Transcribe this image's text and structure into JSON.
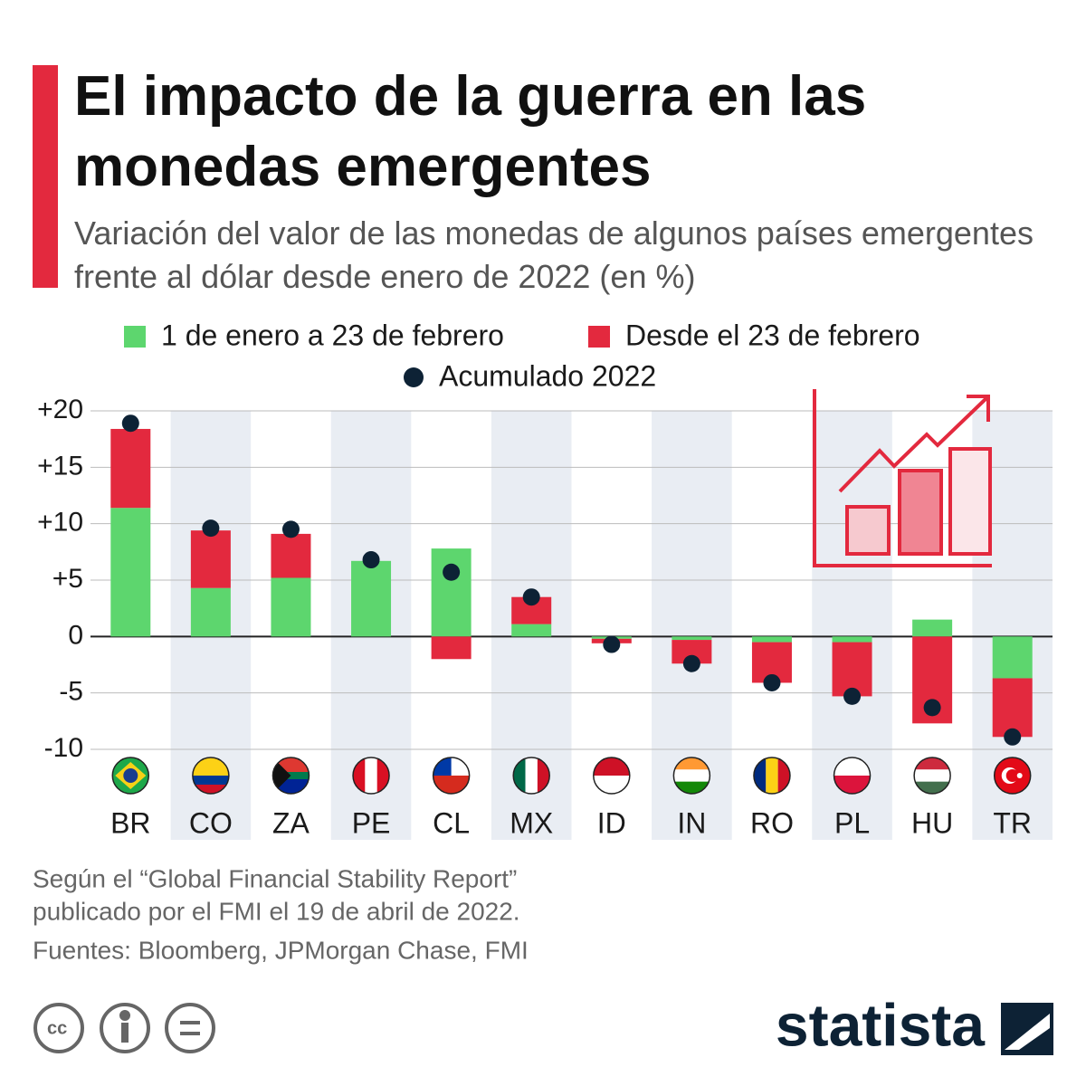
{
  "chart_data": {
    "type": "bar",
    "title": "El impacto de la guerra en las monedas emergentes",
    "subtitle": "Variación del valor de las monedas de algunos países emergentes frente al dólar desde enero de 2022 (en %)",
    "categories": [
      "BR",
      "CO",
      "ZA",
      "PE",
      "CL",
      "MX",
      "ID",
      "IN",
      "RO",
      "PL",
      "HU",
      "TR"
    ],
    "series": [
      {
        "name": "1 de enero a 23 de febrero",
        "color": "#5dd66e",
        "values": [
          11.4,
          4.3,
          5.2,
          6.7,
          7.8,
          1.1,
          -0.2,
          -0.3,
          -0.5,
          -0.5,
          1.5,
          -3.7
        ]
      },
      {
        "name": "Desde el 23 de febrero",
        "color": "#e3293e",
        "values": [
          7.0,
          5.1,
          3.9,
          0,
          -2.0,
          2.4,
          -0.4,
          -2.1,
          -3.6,
          -4.8,
          -7.7,
          -5.2
        ]
      },
      {
        "name": "Acumulado 2022",
        "color": "#0d2235",
        "type": "dot",
        "values": [
          18.9,
          9.6,
          9.5,
          6.8,
          5.7,
          3.5,
          -0.7,
          -2.4,
          -4.1,
          -5.3,
          -6.3,
          -8.9
        ]
      }
    ],
    "ylim": [
      -10,
      20
    ],
    "yticks": [
      {
        "value": -10,
        "label": "-10"
      },
      {
        "value": -5,
        "label": "-5"
      },
      0,
      {
        "value": 5,
        "label": "+5"
      },
      {
        "value": 10,
        "label": "+10"
      },
      {
        "value": 15,
        "label": "+15"
      },
      {
        "value": 20,
        "label": "+20"
      }
    ],
    "grid": true,
    "notes": [
      "Según el “Global Financial Stability Report”",
      "publicado por el FMI el 19 de abril de 2022."
    ],
    "source": "Fuentes: Bloomberg, JPMorgan Chase, FMI",
    "brand": "statista"
  }
}
